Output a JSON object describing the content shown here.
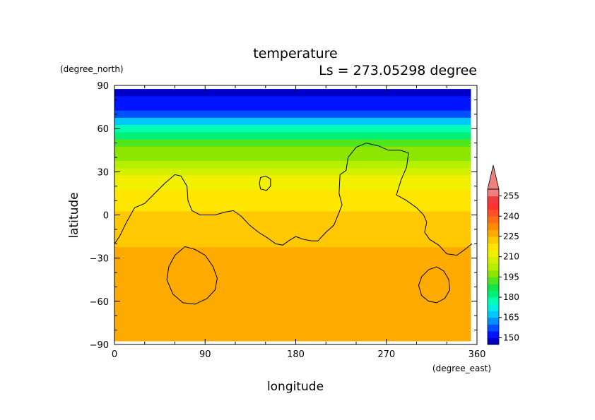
{
  "chart_data": {
    "type": "heatmap",
    "title": "temperature",
    "subtitle": "Ls = 273.05298 degree",
    "xlabel": "longitude",
    "ylabel": "latitude",
    "xunit": "(degree_east)",
    "yunit": "(degree_north)",
    "xlim": [
      0,
      360
    ],
    "ylim": [
      -90,
      90
    ],
    "xticks": [
      0,
      90,
      180,
      270,
      360
    ],
    "yticks": [
      90,
      60,
      30,
      0,
      -30,
      -60,
      -90
    ],
    "colorbar": {
      "levels": [
        145,
        150,
        155,
        160,
        165,
        170,
        175,
        180,
        185,
        190,
        195,
        200,
        205,
        210,
        215,
        220,
        225,
        230,
        235,
        240,
        245,
        250,
        255,
        260
      ],
      "labels": [
        150,
        165,
        180,
        195,
        210,
        225,
        240,
        255
      ],
      "colors": [
        "#0000c8",
        "#0014ff",
        "#0050ff",
        "#0090ff",
        "#00c8ff",
        "#00f0e8",
        "#00ffb4",
        "#00f078",
        "#14e646",
        "#50e61e",
        "#8ce600",
        "#b4f000",
        "#d2f000",
        "#f0f000",
        "#ffe600",
        "#ffc800",
        "#ffaa00",
        "#ff8c00",
        "#ff6e14",
        "#ff5028",
        "#ff3232",
        "#f03c3c",
        "#f08080"
      ],
      "over_color": "#f08080"
    },
    "contour_level": 210,
    "lat_bands": [
      {
        "lat": 85,
        "value": 148
      },
      {
        "lat": 80,
        "value": 150
      },
      {
        "lat": 75,
        "value": 153
      },
      {
        "lat": 70,
        "value": 157
      },
      {
        "lat": 65,
        "value": 165
      },
      {
        "lat": 60,
        "value": 175
      },
      {
        "lat": 55,
        "value": 183
      },
      {
        "lat": 50,
        "value": 190
      },
      {
        "lat": 45,
        "value": 195
      },
      {
        "lat": 40,
        "value": 199
      },
      {
        "lat": 35,
        "value": 203
      },
      {
        "lat": 30,
        "value": 207
      },
      {
        "lat": 25,
        "value": 210
      },
      {
        "lat": 20,
        "value": 213
      },
      {
        "lat": 15,
        "value": 216
      },
      {
        "lat": 10,
        "value": 218
      },
      {
        "lat": 5,
        "value": 219
      },
      {
        "lat": 0,
        "value": 220
      },
      {
        "lat": -5,
        "value": 221
      },
      {
        "lat": -10,
        "value": 222
      },
      {
        "lat": -15,
        "value": 223
      },
      {
        "lat": -20,
        "value": 224
      },
      {
        "lat": -25,
        "value": 226
      },
      {
        "lat": -30,
        "value": 227
      },
      {
        "lat": -35,
        "value": 229
      },
      {
        "lat": -40,
        "value": 229
      },
      {
        "lat": -45,
        "value": 229
      },
      {
        "lat": -50,
        "value": 229
      },
      {
        "lat": -55,
        "value": 229
      },
      {
        "lat": -60,
        "value": 229
      },
      {
        "lat": -65,
        "value": 229
      },
      {
        "lat": -70,
        "value": 229
      },
      {
        "lat": -75,
        "value": 228
      },
      {
        "lat": -80,
        "value": 227
      },
      {
        "lat": -85,
        "value": 226
      }
    ],
    "contours": [
      [
        [
          0,
          -20
        ],
        [
          5,
          -15
        ],
        [
          12,
          -5
        ],
        [
          20,
          5
        ],
        [
          30,
          8
        ],
        [
          40,
          15
        ],
        [
          50,
          22
        ],
        [
          60,
          28
        ],
        [
          66,
          27
        ],
        [
          72,
          20
        ],
        [
          73,
          10
        ],
        [
          77,
          3
        ],
        [
          85,
          0
        ],
        [
          100,
          0
        ],
        [
          110,
          2
        ],
        [
          118,
          3
        ],
        [
          126,
          -1
        ],
        [
          134,
          -7
        ],
        [
          143,
          -12
        ],
        [
          152,
          -16
        ],
        [
          160,
          -20
        ],
        [
          167,
          -21
        ],
        [
          173,
          -18
        ],
        [
          180,
          -15
        ],
        [
          188,
          -17
        ],
        [
          196,
          -18
        ],
        [
          202,
          -18
        ],
        [
          210,
          -12
        ],
        [
          218,
          -7
        ],
        [
          222,
          0
        ],
        [
          226,
          7
        ],
        [
          223,
          15
        ],
        [
          224,
          28
        ],
        [
          230,
          31
        ],
        [
          232,
          40
        ],
        [
          240,
          47
        ],
        [
          250,
          50
        ],
        [
          262,
          48
        ],
        [
          272,
          45
        ],
        [
          284,
          45
        ],
        [
          292,
          43
        ],
        [
          290,
          33
        ],
        [
          285,
          25
        ],
        [
          280,
          14
        ],
        [
          290,
          10
        ],
        [
          300,
          5
        ],
        [
          307,
          0
        ],
        [
          310,
          -5
        ],
        [
          308,
          -12
        ],
        [
          313,
          -17
        ],
        [
          322,
          -21
        ],
        [
          330,
          -27
        ],
        [
          340,
          -28
        ],
        [
          348,
          -24
        ],
        [
          355,
          -20
        ]
      ],
      [
        [
          145,
          18
        ],
        [
          144,
          22
        ],
        [
          145,
          26
        ],
        [
          150,
          27
        ],
        [
          155,
          25
        ],
        [
          155,
          20
        ],
        [
          151,
          17
        ],
        [
          145,
          18
        ]
      ],
      [
        [
          60,
          -28
        ],
        [
          70,
          -22
        ],
        [
          80,
          -24
        ],
        [
          90,
          -28
        ],
        [
          98,
          -36
        ],
        [
          102,
          -44
        ],
        [
          100,
          -52
        ],
        [
          92,
          -58
        ],
        [
          80,
          -62
        ],
        [
          68,
          -61
        ],
        [
          58,
          -55
        ],
        [
          52,
          -45
        ],
        [
          54,
          -36
        ],
        [
          60,
          -28
        ]
      ],
      [
        [
          305,
          -43
        ],
        [
          312,
          -38
        ],
        [
          320,
          -36
        ],
        [
          327,
          -39
        ],
        [
          332,
          -45
        ],
        [
          333,
          -52
        ],
        [
          328,
          -58
        ],
        [
          320,
          -61
        ],
        [
          312,
          -60
        ],
        [
          305,
          -56
        ],
        [
          302,
          -49
        ],
        [
          305,
          -43
        ]
      ]
    ]
  }
}
